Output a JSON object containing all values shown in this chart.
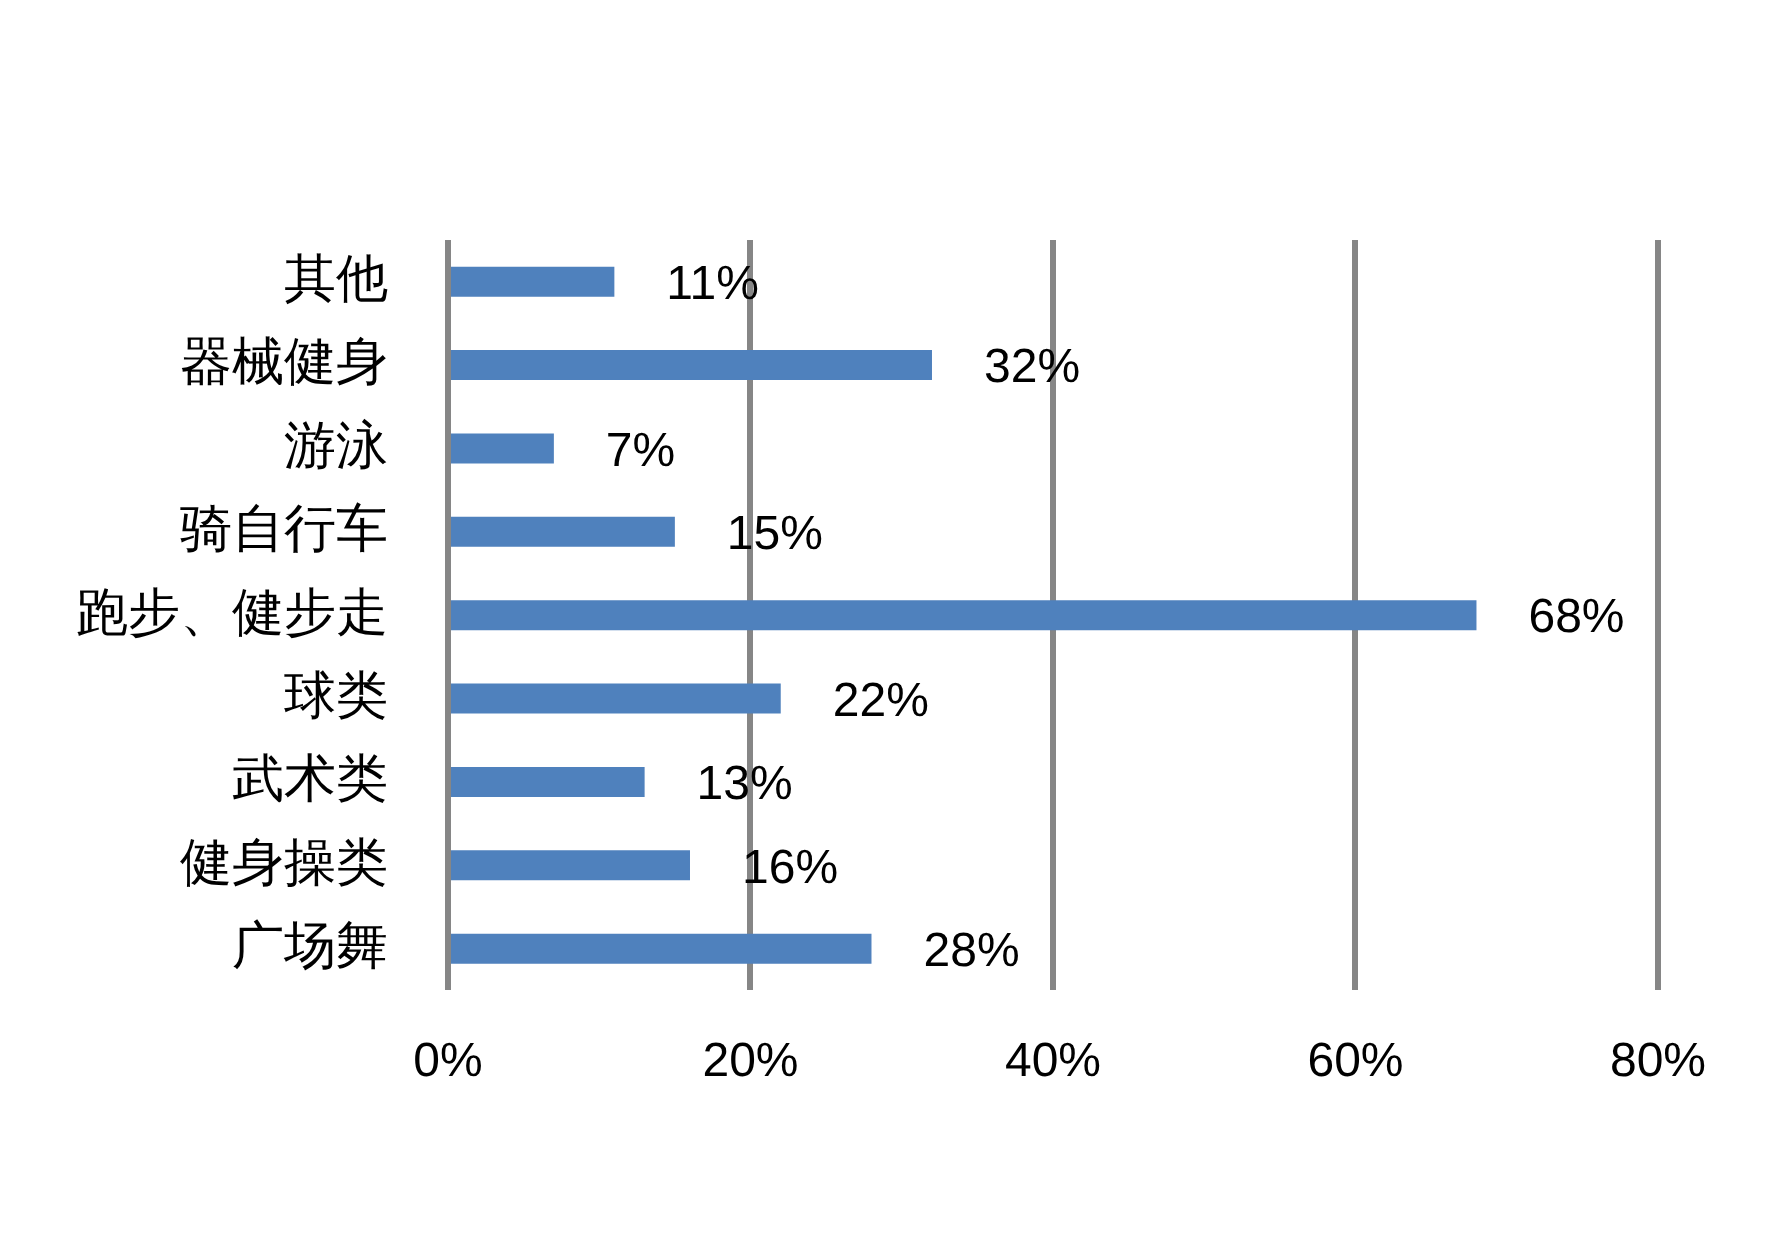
{
  "chart_data": {
    "type": "bar",
    "orientation": "horizontal",
    "categories": [
      "其他",
      "器械健身",
      "游泳",
      "骑自行车",
      "跑步、健步走",
      "球类",
      "武术类",
      "健身操类",
      "广场舞"
    ],
    "values": [
      11,
      32,
      7,
      15,
      68,
      22,
      13,
      16,
      28
    ],
    "value_labels": [
      "11%",
      "32%",
      "7%",
      "15%",
      "68%",
      "22%",
      "13%",
      "16%",
      "28%"
    ],
    "color": "#4f81bd",
    "xlim": [
      0,
      80
    ],
    "xticks": [
      {
        "value": 0,
        "label": "0%"
      },
      {
        "value": 20,
        "label": "20%"
      },
      {
        "value": 40,
        "label": "40%"
      },
      {
        "value": 60,
        "label": "60%"
      },
      {
        "value": 80,
        "label": "80%"
      }
    ],
    "grid": "x",
    "legend": false
  }
}
